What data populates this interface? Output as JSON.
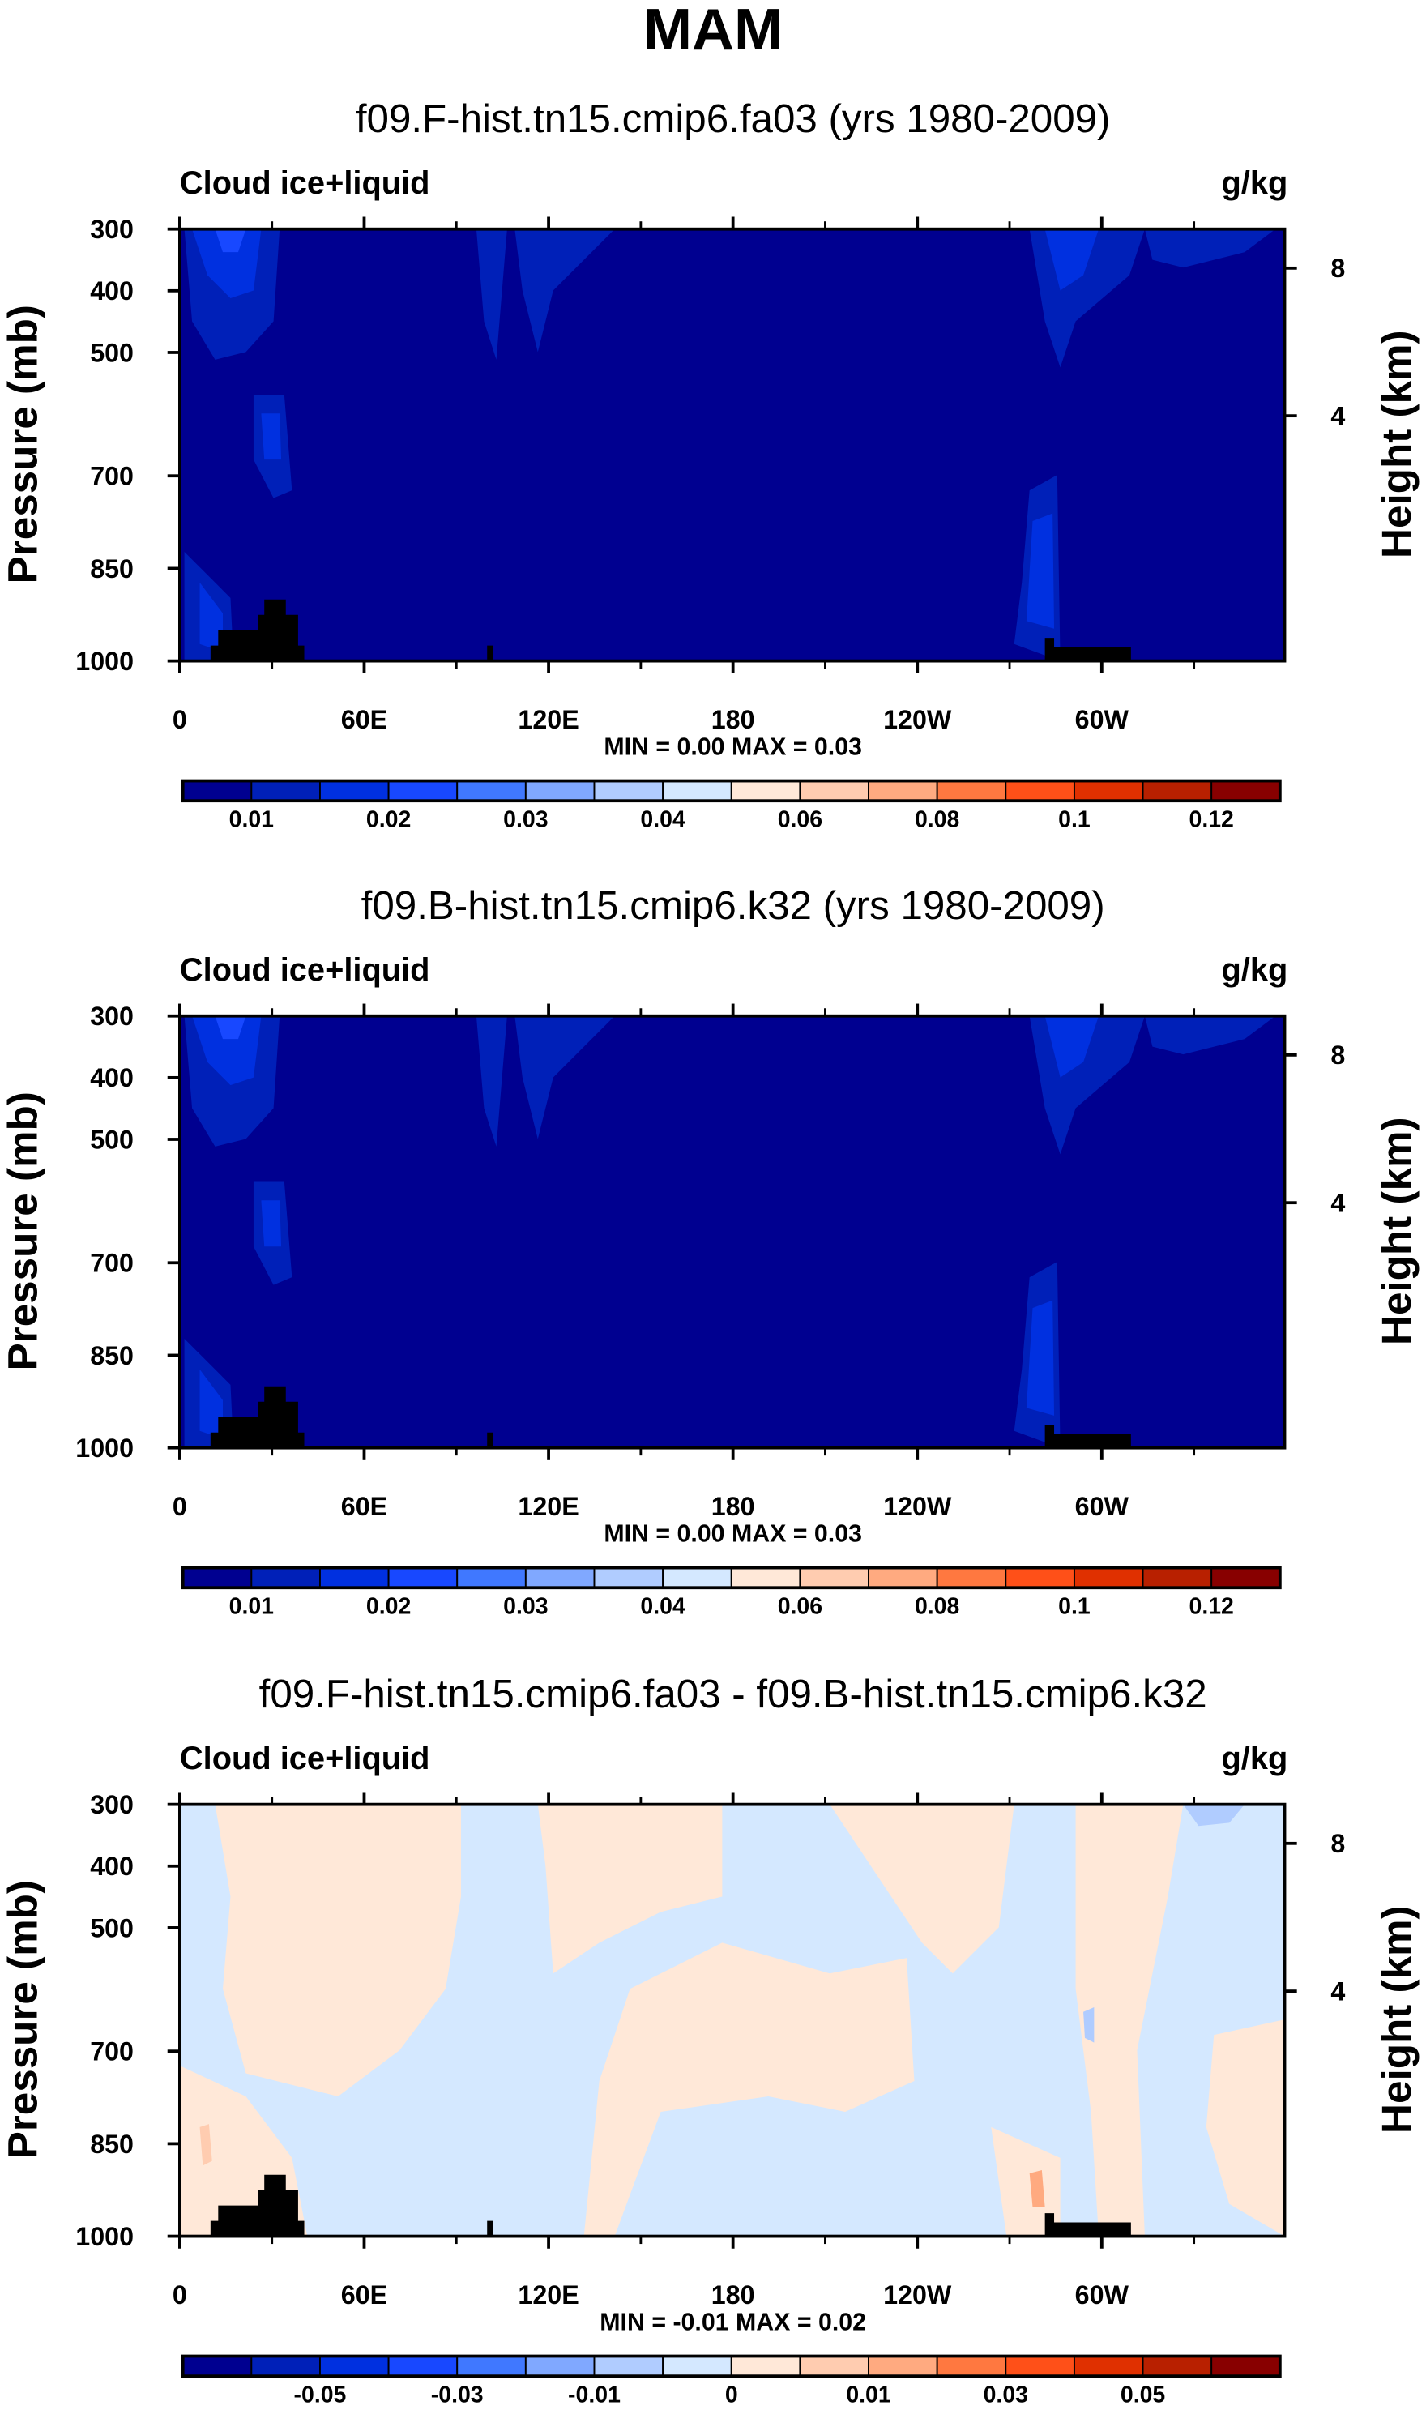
{
  "chart_data": {
    "type": "heatmap",
    "title": "MAM",
    "colors": [
      "#000090",
      "#0020b8",
      "#0030e0",
      "#1848ff",
      "#4078ff",
      "#80a8ff",
      "#b0ccff",
      "#d4e8ff",
      "#ffe8d8",
      "#ffccb0",
      "#ffaa80",
      "#ff7840",
      "#ff5018",
      "#e03000",
      "#b82000",
      "#880000"
    ],
    "panels": [
      {
        "subtitle": "f09.F-hist.tn15.cmip6.fa03 (yrs 1980-2009)",
        "variable": "Cloud ice+liquid",
        "units": "g/kg",
        "ylabel": "Pressure (mb)",
        "ylabel_right": "Height (km)",
        "xticks": [
          "0",
          "60E",
          "120E",
          "180",
          "120W",
          "60W"
        ],
        "yticks": [
          "300",
          "400",
          "500",
          "700",
          "850",
          "1000"
        ],
        "yticks_right": [
          "8",
          "4"
        ],
        "stats": "MIN =   0.00  MAX =   0.03",
        "colorbar_labels": [
          "0.01",
          "0.02",
          "0.03",
          "0.04",
          "0.06",
          "0.08",
          "0.1",
          "0.12"
        ],
        "min": 0.0,
        "max": 0.03
      },
      {
        "subtitle": "f09.B-hist.tn15.cmip6.k32 (yrs 1980-2009)",
        "variable": "Cloud ice+liquid",
        "units": "g/kg",
        "ylabel": "Pressure (mb)",
        "ylabel_right": "Height (km)",
        "xticks": [
          "0",
          "60E",
          "120E",
          "180",
          "120W",
          "60W"
        ],
        "yticks": [
          "300",
          "400",
          "500",
          "700",
          "850",
          "1000"
        ],
        "yticks_right": [
          "8",
          "4"
        ],
        "stats": "MIN =   0.00  MAX =   0.03",
        "colorbar_labels": [
          "0.01",
          "0.02",
          "0.03",
          "0.04",
          "0.06",
          "0.08",
          "0.1",
          "0.12"
        ],
        "min": 0.0,
        "max": 0.03
      },
      {
        "subtitle": "f09.F-hist.tn15.cmip6.fa03 - f09.B-hist.tn15.cmip6.k32",
        "variable": "Cloud ice+liquid",
        "units": "g/kg",
        "ylabel": "Pressure (mb)",
        "ylabel_right": "Height (km)",
        "xticks": [
          "0",
          "60E",
          "120E",
          "180",
          "120W",
          "60W"
        ],
        "yticks": [
          "300",
          "400",
          "500",
          "700",
          "850",
          "1000"
        ],
        "yticks_right": [
          "8",
          "4"
        ],
        "stats": "MIN =  -0.01  MAX =   0.02",
        "colorbar_labels": [
          "-0.05",
          "-0.03",
          "-0.01",
          "0",
          "0.01",
          "0.03",
          "0.05"
        ],
        "min": -0.01,
        "max": 0.02
      }
    ]
  }
}
